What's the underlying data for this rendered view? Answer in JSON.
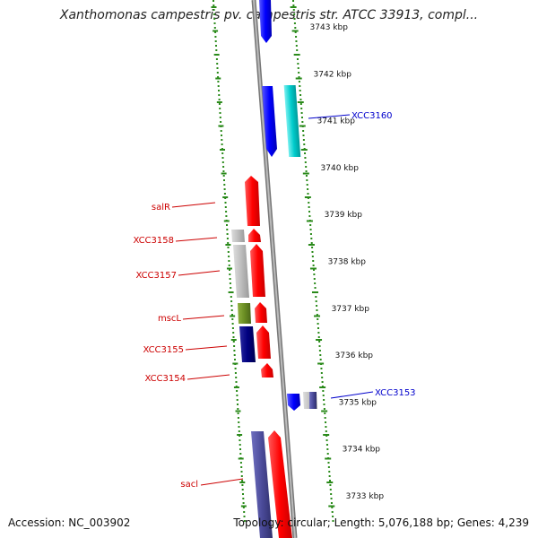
{
  "title": "Xanthomonas campestris pv. campestris str. ATCC 33913, compl...",
  "accession": "Accession: NC_003902",
  "topology": "Topology: circular; Length: 5,076,188 bp; Genes: 4,239",
  "ticks": [
    {
      "label": "3743 kbp",
      "kbp": 3743
    },
    {
      "label": "3742 kbp",
      "kbp": 3742
    },
    {
      "label": "3741 kbp",
      "kbp": 3741
    },
    {
      "label": "3740 kbp",
      "kbp": 3740
    },
    {
      "label": "3739 kbp",
      "kbp": 3739
    },
    {
      "label": "3738 kbp",
      "kbp": 3738
    },
    {
      "label": "3737 kbp",
      "kbp": 3737
    },
    {
      "label": "3736 kbp",
      "kbp": 3736
    },
    {
      "label": "3735 kbp",
      "kbp": 3735
    },
    {
      "label": "3734 kbp",
      "kbp": 3734
    },
    {
      "label": "3733 kbp",
      "kbp": 3733
    }
  ],
  "labels": [
    {
      "text": "XCC3160",
      "strand": "right",
      "color": "#0000cc"
    },
    {
      "text": "salR",
      "strand": "left",
      "color": "#cc0000"
    },
    {
      "text": "XCC3158",
      "strand": "left",
      "color": "#cc0000"
    },
    {
      "text": "XCC3157",
      "strand": "left",
      "color": "#cc0000"
    },
    {
      "text": "mscL",
      "strand": "left",
      "color": "#cc0000"
    },
    {
      "text": "XCC3155",
      "strand": "left",
      "color": "#cc0000"
    },
    {
      "text": "XCC3154",
      "strand": "left",
      "color": "#cc0000"
    },
    {
      "text": "XCC3153",
      "strand": "right",
      "color": "#0000cc"
    },
    {
      "text": "sacl",
      "strand": "left",
      "color": "#cc0000"
    }
  ],
  "colors": {
    "backbone": "#8a8a8a",
    "ring_dots": "#2a8a1a",
    "forward_cds": "#ff0000",
    "reverse_cds": "#0000ff",
    "other_cyan": "#00cccc",
    "gray_feature": "#b8b8b8",
    "navy_feature": "#000080",
    "olive_feature": "#6b8e23",
    "purple_feature": "#4b4b9a"
  }
}
